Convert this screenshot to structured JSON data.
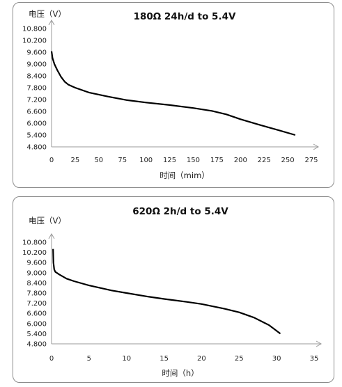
{
  "chart_data": [
    {
      "type": "line",
      "title": "180Ω 24h/d to 5.4V",
      "ylabel": "电压（V）",
      "xlabel": "时间（mim）",
      "xlim": [
        0,
        275
      ],
      "ylim": [
        4.8,
        10.8
      ],
      "xticks": [
        "0",
        "25",
        "50",
        "75",
        "100",
        "125",
        "150",
        "175",
        "200",
        "225",
        "250",
        "275"
      ],
      "yticks": [
        "10.800",
        "10.200",
        "9.600",
        "9.000",
        "8.400",
        "7.800",
        "7.200",
        "6.600",
        "6.000",
        "5.400",
        "4.800"
      ],
      "grid": false,
      "series": [
        {
          "x": [
            0,
            1,
            3,
            6,
            10,
            14,
            18,
            25,
            40,
            60,
            80,
            100,
            125,
            150,
            170,
            185,
            200,
            220,
            240,
            258
          ],
          "y": [
            9.65,
            9.3,
            9.0,
            8.7,
            8.35,
            8.1,
            7.95,
            7.8,
            7.55,
            7.35,
            7.17,
            7.05,
            6.92,
            6.77,
            6.62,
            6.45,
            6.2,
            5.92,
            5.65,
            5.4
          ]
        }
      ]
    },
    {
      "type": "line",
      "title": "620Ω 2h/d to 5.4V",
      "ylabel": "电压（V）",
      "xlabel": "时间（h）",
      "xlim": [
        0,
        35
      ],
      "ylim": [
        4.8,
        10.8
      ],
      "xticks": [
        "0",
        "5",
        "10",
        "15",
        "20",
        "25",
        "30",
        "35"
      ],
      "yticks": [
        "10.800",
        "10.200",
        "9.600",
        "9.000",
        "8.400",
        "7.800",
        "7.200",
        "6.600",
        "6.000",
        "5.400",
        "4.800"
      ],
      "grid": false,
      "series": [
        {
          "x": [
            0.2,
            0.25,
            0.35,
            0.5,
            1,
            2,
            3,
            5,
            8,
            10,
            13,
            15,
            18,
            20,
            23,
            25,
            27,
            29,
            30.5
          ],
          "y": [
            10.4,
            9.6,
            9.2,
            9.05,
            8.9,
            8.65,
            8.5,
            8.25,
            7.95,
            7.8,
            7.58,
            7.45,
            7.28,
            7.15,
            6.88,
            6.66,
            6.35,
            5.9,
            5.4
          ]
        }
      ]
    }
  ]
}
